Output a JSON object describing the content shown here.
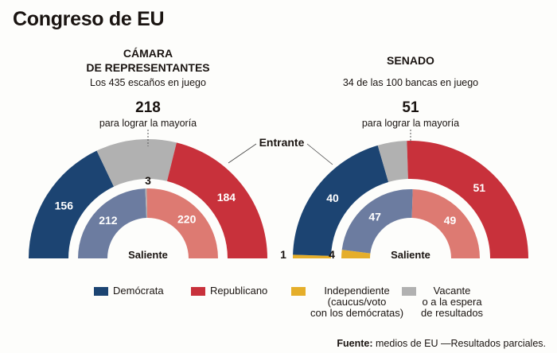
{
  "title": "Congreso de EU",
  "colors": {
    "democrat": "#1c4472",
    "republican": "#c8313b",
    "independent": "#e5ae2a",
    "vacant": "#b1b1b1",
    "democrat_prev": "#6c7ca0",
    "republican_prev": "#dd7a72"
  },
  "house": {
    "heading_line1": "CÁMARA",
    "heading_line2": "DE REPRESENTANTES",
    "subtitle": "Los 435 escaños en juego",
    "majority_number": "218",
    "majority_text": "para lograr la mayoría",
    "inner_label": "Saliente"
  },
  "senate": {
    "heading": "SENADO",
    "subtitle": "34 de las 100 bancas en juego",
    "majority_number": "51",
    "majority_text": "para lograr la mayoría",
    "inner_label": "Saliente"
  },
  "entrante_label": "Entrante",
  "legend": [
    {
      "key": "democrat",
      "label": "Demócrata"
    },
    {
      "key": "republican",
      "label": "Republicano"
    },
    {
      "key": "independent",
      "label": "Independiente\n(caucus/voto\ncon los demócratas)"
    },
    {
      "key": "vacant",
      "label": "Vacante\no a la espera\nde resultados"
    }
  ],
  "footer": {
    "bold": "Fuente:",
    "text": " medios de EU —Resultados parciales."
  },
  "chart_data": [
    {
      "type": "pie",
      "subtype": "half-donut",
      "title": "Cámara de Representantes — Entrante",
      "total": 435,
      "categories": [
        "Demócrata",
        "Vacante o a la espera de resultados",
        "Republicano"
      ],
      "values": [
        156,
        95,
        184
      ]
    },
    {
      "type": "pie",
      "subtype": "half-donut",
      "title": "Cámara de Representantes — Saliente",
      "total": 435,
      "categories": [
        "Demócrata",
        "Vacante",
        "Republicano"
      ],
      "values": [
        212,
        3,
        220
      ]
    },
    {
      "type": "pie",
      "subtype": "half-donut",
      "title": "Senado — Entrante",
      "total": 100,
      "categories": [
        "Independiente",
        "Demócrata",
        "Vacante o a la espera de resultados",
        "Republicano"
      ],
      "values": [
        1,
        40,
        8,
        51
      ]
    },
    {
      "type": "pie",
      "subtype": "half-donut",
      "title": "Senado — Saliente",
      "total": 100,
      "categories": [
        "Independiente",
        "Demócrata",
        "Republicano"
      ],
      "values": [
        4,
        47,
        49
      ]
    }
  ]
}
